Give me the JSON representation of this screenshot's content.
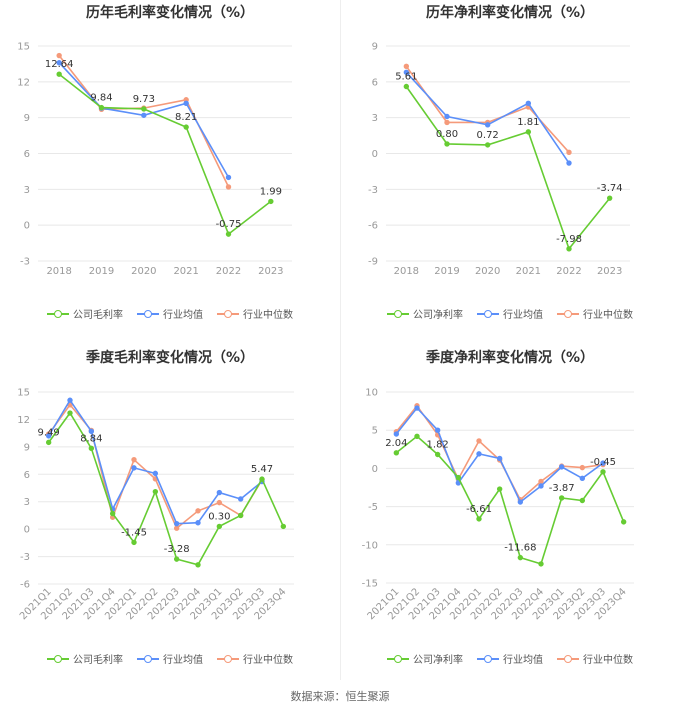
{
  "legend_labels": {
    "gross": [
      "公司毛利率",
      "行业均值",
      "行业中位数"
    ],
    "net": [
      "公司净利率",
      "行业均值",
      "行业中位数"
    ]
  },
  "footer": "数据来源：恒生聚源",
  "colors": {
    "company": "#66cc33",
    "industry_avg": "#5b8ff9",
    "industry_median": "#f59a7a",
    "grid": "#e8e8e8",
    "axis_text": "#999999"
  },
  "chart_data": [
    {
      "type": "line",
      "title": "历年毛利率变化情况（%）",
      "categories": [
        "2018",
        "2019",
        "2020",
        "2021",
        "2022",
        "2023"
      ],
      "ylim": [
        -3,
        15
      ],
      "yticks": [
        -3,
        0,
        3,
        6,
        9,
        12,
        15
      ],
      "grid": true,
      "legend_position": "bottom",
      "series": [
        {
          "name": "公司毛利率",
          "color": "#66cc33",
          "values": [
            12.64,
            9.84,
            9.73,
            8.21,
            -0.75,
            1.99
          ],
          "labels": [
            "12.64",
            "9.84",
            "9.73",
            "8.21",
            "-0.75",
            "1.99"
          ]
        },
        {
          "name": "行业均值",
          "color": "#5b8ff9",
          "values": [
            13.6,
            9.8,
            9.2,
            10.2,
            4.0,
            null
          ]
        },
        {
          "name": "行业中位数",
          "color": "#f59a7a",
          "values": [
            14.2,
            9.7,
            9.8,
            10.5,
            3.2,
            null
          ]
        }
      ]
    },
    {
      "type": "line",
      "title": "历年净利率变化情况（%）",
      "categories": [
        "2018",
        "2019",
        "2020",
        "2021",
        "2022",
        "2023"
      ],
      "ylim": [
        -9,
        9
      ],
      "yticks": [
        -9,
        -6,
        -3,
        0,
        3,
        6,
        9
      ],
      "grid": true,
      "legend_position": "bottom",
      "series": [
        {
          "name": "公司净利率",
          "color": "#66cc33",
          "values": [
            5.61,
            0.8,
            0.72,
            1.81,
            -7.98,
            -3.74
          ],
          "labels": [
            "5.61",
            "0.80",
            "0.72",
            "1.81",
            "-7.98",
            "-3.74"
          ]
        },
        {
          "name": "行业均值",
          "color": "#5b8ff9",
          "values": [
            6.8,
            3.1,
            2.4,
            4.2,
            -0.8,
            null
          ]
        },
        {
          "name": "行业中位数",
          "color": "#f59a7a",
          "values": [
            7.3,
            2.6,
            2.6,
            3.9,
            0.1,
            null
          ]
        }
      ]
    },
    {
      "type": "line",
      "title": "季度毛利率变化情况（%）",
      "categories": [
        "2021Q1",
        "2021Q2",
        "2021Q3",
        "2021Q4",
        "2022Q1",
        "2022Q2",
        "2022Q3",
        "2022Q4",
        "2023Q1",
        "2023Q2",
        "2023Q3",
        "2023Q4"
      ],
      "ylim": [
        -6,
        15
      ],
      "yticks": [
        -6,
        -3,
        0,
        3,
        6,
        9,
        12,
        15
      ],
      "grid": true,
      "legend_position": "bottom",
      "series": [
        {
          "name": "公司毛利率",
          "color": "#66cc33",
          "values": [
            9.49,
            12.7,
            8.84,
            1.7,
            -1.45,
            4.1,
            -3.28,
            -3.9,
            0.3,
            1.5,
            5.47,
            0.3
          ],
          "labels": [
            "9.49",
            "",
            "8.84",
            "",
            "-1.45",
            "",
            "-3.28",
            "",
            "0.30",
            "",
            "5.47",
            ""
          ]
        },
        {
          "name": "行业均值",
          "color": "#5b8ff9",
          "values": [
            10.2,
            14.1,
            10.7,
            2.2,
            6.7,
            6.1,
            0.6,
            0.7,
            4.0,
            3.3,
            5.2,
            null
          ]
        },
        {
          "name": "行业中位数",
          "color": "#f59a7a",
          "values": [
            10.4,
            13.6,
            10.8,
            1.3,
            7.6,
            5.5,
            0.1,
            2.0,
            2.9,
            1.5,
            5.4,
            null
          ]
        }
      ]
    },
    {
      "type": "line",
      "title": "季度净利率变化情况（%）",
      "categories": [
        "2021Q1",
        "2021Q2",
        "2021Q3",
        "2021Q4",
        "2022Q1",
        "2022Q2",
        "2022Q3",
        "2022Q4",
        "2023Q1",
        "2023Q2",
        "2023Q3",
        "2023Q4"
      ],
      "ylim": [
        -15,
        10
      ],
      "yticks": [
        -15,
        -10,
        -5,
        0,
        5,
        10
      ],
      "grid": true,
      "legend_position": "bottom",
      "series": [
        {
          "name": "公司净利率",
          "color": "#66cc33",
          "values": [
            2.04,
            4.2,
            1.82,
            -1.2,
            -6.61,
            -2.7,
            -11.68,
            -12.5,
            -3.87,
            -4.2,
            -0.45,
            -7.0
          ],
          "labels": [
            "2.04",
            "",
            "1.82",
            "",
            "-6.61",
            "",
            "-11.68",
            "",
            "-3.87",
            "",
            "-0.45",
            ""
          ]
        },
        {
          "name": "行业均值",
          "color": "#5b8ff9",
          "values": [
            4.5,
            7.9,
            5.0,
            -1.9,
            1.9,
            1.3,
            -4.4,
            -2.3,
            0.2,
            -1.3,
            0.7,
            null
          ]
        },
        {
          "name": "行业中位数",
          "color": "#f59a7a",
          "values": [
            4.8,
            8.2,
            4.4,
            -1.4,
            3.6,
            1.1,
            -4.1,
            -1.7,
            0.3,
            0.1,
            0.5,
            null
          ]
        }
      ]
    }
  ]
}
